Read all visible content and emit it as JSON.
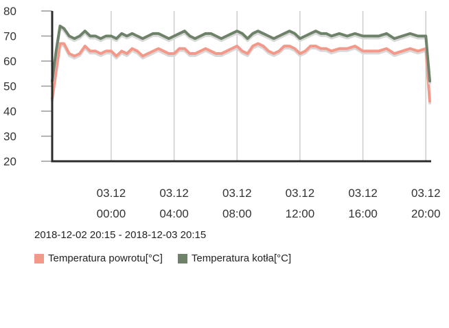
{
  "chart_data": {
    "type": "line",
    "y_ticks": [
      20,
      30,
      40,
      50,
      60,
      70,
      80
    ],
    "ylim": [
      20,
      80
    ],
    "x_ticks": [
      {
        "date": "03.12",
        "time": "00:00",
        "x": "2018-12-03 00:00"
      },
      {
        "date": "03.12",
        "time": "04:00",
        "x": "2018-12-03 04:00"
      },
      {
        "date": "03.12",
        "time": "08:00",
        "x": "2018-12-03 08:00"
      },
      {
        "date": "03.12",
        "time": "12:00",
        "x": "2018-12-03 12:00"
      },
      {
        "date": "03.12",
        "time": "16:00",
        "x": "2018-12-03 16:00"
      },
      {
        "date": "03.12",
        "time": "20:00",
        "x": "2018-12-03 20:00"
      }
    ],
    "xlim": [
      "2018-12-02 20:15",
      "2018-12-03 20:15"
    ],
    "grid": {
      "vertical": true,
      "horizontal": false
    },
    "x": [
      "2018-12-02 20:15",
      "2018-12-02 20:30",
      "2018-12-02 20:45",
      "2018-12-02 21:00",
      "2018-12-02 21:20",
      "2018-12-02 21:40",
      "2018-12-02 22:00",
      "2018-12-02 22:20",
      "2018-12-02 22:40",
      "2018-12-02 23:00",
      "2018-12-02 23:20",
      "2018-12-02 23:40",
      "2018-12-03 00:00",
      "2018-12-03 00:20",
      "2018-12-03 00:40",
      "2018-12-03 01:00",
      "2018-12-03 01:20",
      "2018-12-03 01:40",
      "2018-12-03 02:00",
      "2018-12-03 02:20",
      "2018-12-03 02:40",
      "2018-12-03 03:00",
      "2018-12-03 03:20",
      "2018-12-03 03:40",
      "2018-12-03 04:00",
      "2018-12-03 04:20",
      "2018-12-03 04:40",
      "2018-12-03 05:00",
      "2018-12-03 05:20",
      "2018-12-03 05:40",
      "2018-12-03 06:00",
      "2018-12-03 06:20",
      "2018-12-03 06:40",
      "2018-12-03 07:00",
      "2018-12-03 07:20",
      "2018-12-03 07:40",
      "2018-12-03 08:00",
      "2018-12-03 08:20",
      "2018-12-03 08:40",
      "2018-12-03 09:00",
      "2018-12-03 09:20",
      "2018-12-03 09:40",
      "2018-12-03 10:00",
      "2018-12-03 10:20",
      "2018-12-03 10:40",
      "2018-12-03 11:00",
      "2018-12-03 11:20",
      "2018-12-03 11:40",
      "2018-12-03 12:00",
      "2018-12-03 12:20",
      "2018-12-03 12:40",
      "2018-12-03 13:00",
      "2018-12-03 13:20",
      "2018-12-03 13:40",
      "2018-12-03 14:00",
      "2018-12-03 14:30",
      "2018-12-03 15:00",
      "2018-12-03 15:30",
      "2018-12-03 16:00",
      "2018-12-03 16:30",
      "2018-12-03 17:00",
      "2018-12-03 17:30",
      "2018-12-03 18:00",
      "2018-12-03 18:30",
      "2018-12-03 19:00",
      "2018-12-03 19:30",
      "2018-12-03 20:00",
      "2018-12-03 20:15"
    ],
    "series": [
      {
        "name": "Temperatura powrotu[°C]",
        "color": "#f4998a",
        "values": [
          45,
          56,
          67,
          67,
          63,
          62,
          63,
          66,
          64,
          64,
          63,
          64,
          64,
          62,
          64,
          63,
          65,
          64,
          62,
          63,
          64,
          65,
          64,
          63,
          63,
          65,
          65,
          63,
          63,
          64,
          65,
          64,
          63,
          63,
          64,
          65,
          66,
          64,
          63,
          66,
          67,
          66,
          64,
          63,
          64,
          66,
          66,
          65,
          63,
          64,
          66,
          66,
          65,
          65,
          64,
          65,
          65,
          66,
          64,
          64,
          64,
          65,
          63,
          64,
          65,
          64,
          65,
          44
        ]
      },
      {
        "name": "Temperatura kotła[°C]",
        "color": "#6d8268",
        "values": [
          52,
          64,
          74,
          73,
          70,
          69,
          70,
          72,
          70,
          70,
          69,
          70,
          70,
          69,
          71,
          70,
          71,
          70,
          69,
          70,
          71,
          71,
          70,
          69,
          70,
          71,
          72,
          70,
          69,
          70,
          71,
          71,
          70,
          69,
          70,
          71,
          72,
          71,
          69,
          71,
          72,
          71,
          70,
          69,
          70,
          71,
          72,
          71,
          69,
          70,
          71,
          72,
          71,
          71,
          70,
          71,
          70,
          71,
          70,
          70,
          70,
          71,
          69,
          70,
          71,
          70,
          70,
          52
        ]
      }
    ]
  },
  "range_label": "2018-12-02 20:15 - 2018-12-03 20:15",
  "legend": [
    {
      "label": "Temperatura powrotu[°C]",
      "color": "#f4998a"
    },
    {
      "label": "Temperatura kotła[°C]",
      "color": "#6d8268"
    }
  ]
}
